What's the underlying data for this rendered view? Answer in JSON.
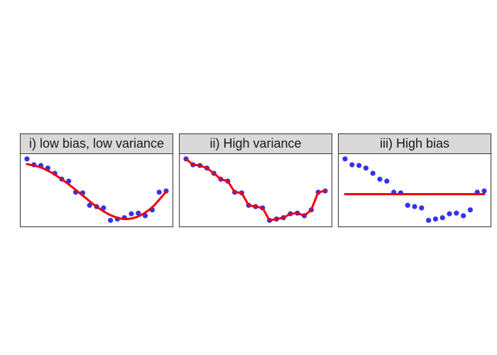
{
  "chart_data": [
    {
      "type": "scatter",
      "title": "i) low bias, low variance",
      "fit": "smooth",
      "points": [
        [
          0,
          9.8
        ],
        [
          1,
          8.9
        ],
        [
          2,
          8.8
        ],
        [
          3,
          8.4
        ],
        [
          4,
          7.6
        ],
        [
          5,
          6.7
        ],
        [
          6,
          6.4
        ],
        [
          7,
          4.7
        ],
        [
          8,
          4.6
        ],
        [
          9,
          2.7
        ],
        [
          10,
          2.5
        ],
        [
          11,
          2.3
        ],
        [
          12,
          0.4
        ],
        [
          13,
          0.6
        ],
        [
          14,
          0.8
        ],
        [
          15,
          1.4
        ],
        [
          16,
          1.5
        ],
        [
          17,
          1.1
        ],
        [
          18,
          2.0
        ],
        [
          19,
          4.7
        ],
        [
          20,
          4.9
        ]
      ],
      "fit_line": [
        [
          0,
          9.0
        ],
        [
          2,
          8.5
        ],
        [
          4,
          7.4
        ],
        [
          6,
          5.9
        ],
        [
          8,
          4.2
        ],
        [
          10,
          2.5
        ],
        [
          12,
          1.2
        ],
        [
          14,
          0.6
        ],
        [
          16,
          1.0
        ],
        [
          18,
          2.4
        ],
        [
          20,
          4.8
        ]
      ],
      "xlim": [
        0,
        20
      ],
      "ylim": [
        0,
        10
      ]
    },
    {
      "type": "scatter",
      "title": "ii) High variance",
      "fit": "interpolate",
      "points": [
        [
          0,
          9.8
        ],
        [
          1,
          8.9
        ],
        [
          2,
          8.8
        ],
        [
          3,
          8.4
        ],
        [
          4,
          7.6
        ],
        [
          5,
          6.7
        ],
        [
          6,
          6.4
        ],
        [
          7,
          4.7
        ],
        [
          8,
          4.6
        ],
        [
          9,
          2.7
        ],
        [
          10,
          2.5
        ],
        [
          11,
          2.3
        ],
        [
          12,
          0.4
        ],
        [
          13,
          0.6
        ],
        [
          14,
          0.8
        ],
        [
          15,
          1.4
        ],
        [
          16,
          1.5
        ],
        [
          17,
          1.1
        ],
        [
          18,
          2.0
        ],
        [
          19,
          4.7
        ],
        [
          20,
          4.9
        ]
      ],
      "fit_line": [
        [
          0,
          9.8
        ],
        [
          1,
          8.9
        ],
        [
          2,
          8.8
        ],
        [
          3,
          8.4
        ],
        [
          4,
          7.6
        ],
        [
          5,
          6.7
        ],
        [
          6,
          6.4
        ],
        [
          7,
          4.7
        ],
        [
          8,
          4.6
        ],
        [
          9,
          2.7
        ],
        [
          10,
          2.5
        ],
        [
          11,
          2.3
        ],
        [
          12,
          0.4
        ],
        [
          13,
          0.6
        ],
        [
          14,
          0.8
        ],
        [
          15,
          1.4
        ],
        [
          16,
          1.5
        ],
        [
          17,
          1.1
        ],
        [
          18,
          2.0
        ],
        [
          19,
          4.7
        ],
        [
          20,
          4.9
        ]
      ],
      "xlim": [
        0,
        20
      ],
      "ylim": [
        0,
        10
      ]
    },
    {
      "type": "scatter",
      "title": "iii) High bias",
      "fit": "constant",
      "points": [
        [
          0,
          9.8
        ],
        [
          1,
          8.9
        ],
        [
          2,
          8.8
        ],
        [
          3,
          8.4
        ],
        [
          4,
          7.6
        ],
        [
          5,
          6.7
        ],
        [
          6,
          6.4
        ],
        [
          7,
          4.7
        ],
        [
          8,
          4.6
        ],
        [
          9,
          2.7
        ],
        [
          10,
          2.5
        ],
        [
          11,
          2.3
        ],
        [
          12,
          0.4
        ],
        [
          13,
          0.6
        ],
        [
          14,
          0.8
        ],
        [
          15,
          1.4
        ],
        [
          16,
          1.5
        ],
        [
          17,
          1.1
        ],
        [
          18,
          2.0
        ],
        [
          19,
          4.7
        ],
        [
          20,
          4.9
        ]
      ],
      "fit_line": [
        [
          0,
          4.4
        ],
        [
          20,
          4.4
        ]
      ],
      "xlim": [
        0,
        20
      ],
      "ylim": [
        0,
        10
      ]
    }
  ],
  "colors": {
    "points": "#3333ee",
    "fit_line": "#ee0000",
    "header_bg": "#d9d9d9",
    "border": "#333333"
  }
}
